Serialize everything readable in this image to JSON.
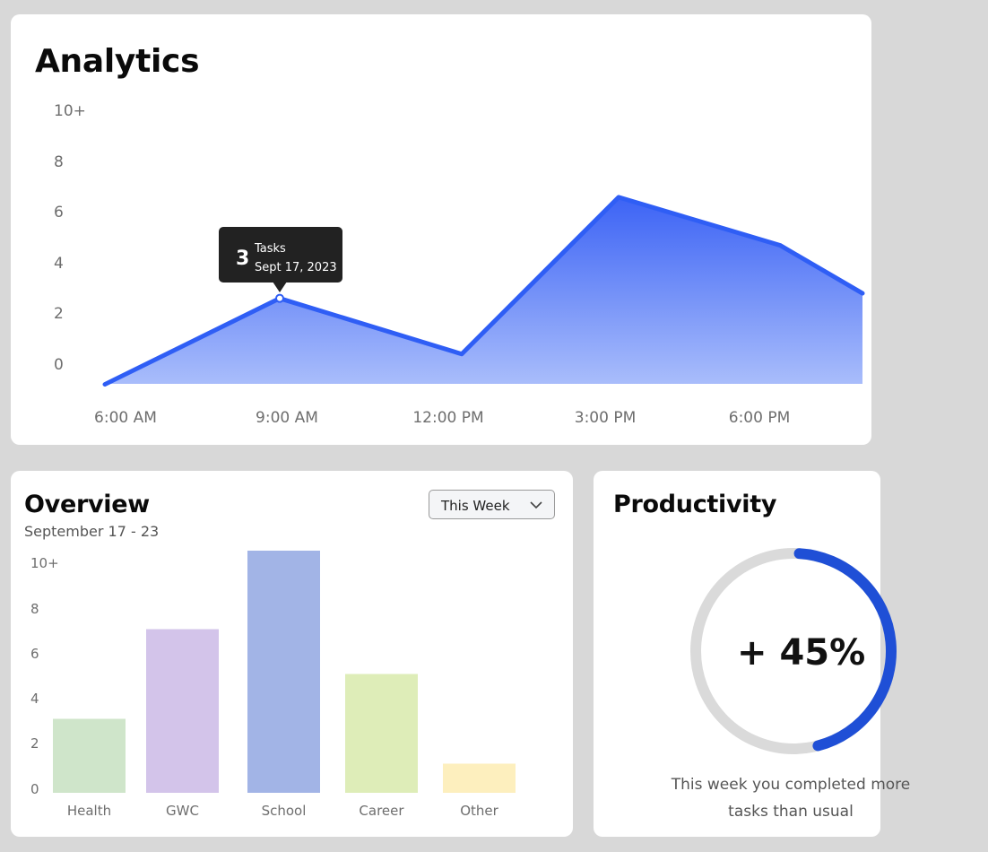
{
  "analytics": {
    "title": "Analytics",
    "tooltip": {
      "value": "3",
      "label": "Tasks",
      "date": "Sept 17, 2023"
    },
    "accent_color": "#2f5ef5",
    "chart_data": {
      "type": "area",
      "y_tick_labels": [
        "10+",
        "8",
        "6",
        "4",
        "2",
        "0"
      ],
      "x": [
        "6:00 AM",
        "9:00 AM",
        "12:00 PM",
        "3:00 PM",
        "6:00 PM"
      ],
      "points": [
        {
          "x": "6:00 AM",
          "y": -0.8
        },
        {
          "x": "9:00 AM",
          "y": 2.6
        },
        {
          "x": "12:00 PM",
          "y": 0.4
        },
        {
          "x": "3:00 PM",
          "y": 6.6
        },
        {
          "x": "6:00 PM",
          "y": 4.7
        },
        {
          "x": "7:30 PM",
          "y": 2.8
        }
      ],
      "ylim": [
        -0.8,
        10.8
      ]
    }
  },
  "overview": {
    "title": "Overview",
    "subtitle": "September 17 - 23",
    "dropdown": {
      "selected": "This Week"
    },
    "chart_data": {
      "type": "bar",
      "categories": [
        "Health",
        "GWC",
        "School",
        "Career",
        "Other"
      ],
      "values": [
        3.3,
        7.3,
        10.8,
        5.3,
        1.3
      ],
      "colors": [
        "#cfe5ca",
        "#d3c4ea",
        "#a2b4e6",
        "#deedb8",
        "#fdefbe"
      ],
      "y_tick_labels": [
        "10+",
        "8",
        "6",
        "4",
        "2",
        "0"
      ],
      "ylim": [
        0,
        10.8
      ]
    }
  },
  "productivity": {
    "title": "Productivity",
    "value": "+ 45%",
    "progress": 0.45,
    "accent_color": "#1f4fd6",
    "description_line1": "This week you completed more",
    "description_line2": "tasks than usual"
  }
}
